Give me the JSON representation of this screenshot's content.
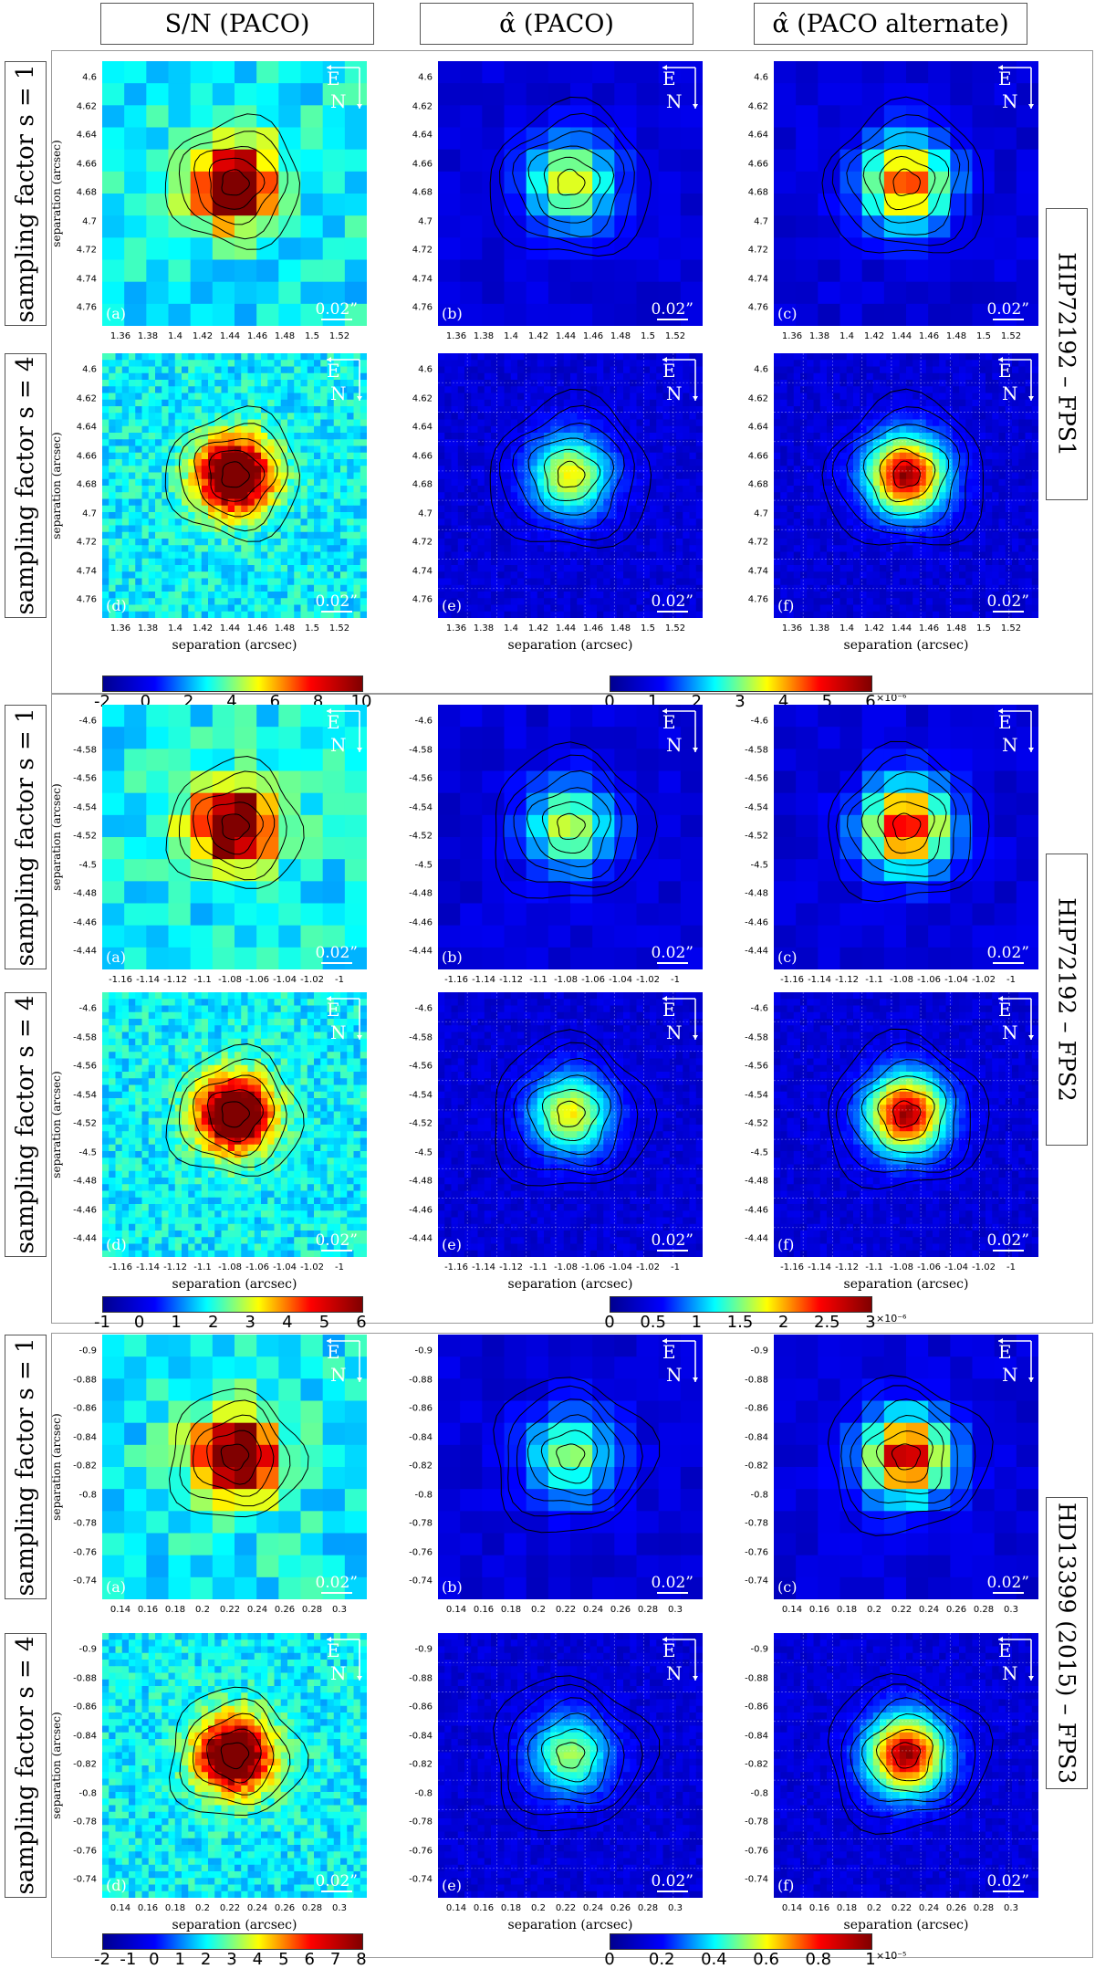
{
  "columns": [
    "S/N (PACO)",
    "α̂ (PACO)",
    "α̂ (PACO alternate)"
  ],
  "row_labels": [
    "sampling factor s = 1",
    "sampling factor s = 4"
  ],
  "axis_label": "separation (arcsec)",
  "scale_label": "0.02”",
  "compass": {
    "east": "E",
    "north": "N"
  },
  "panel_letters": [
    "(a)",
    "(b)",
    "(c)",
    "(d)",
    "(e)",
    "(f)"
  ],
  "targets": [
    {
      "name": "HIP72192 – FPS1",
      "yticks": [
        "4.6",
        "4.62",
        "4.64",
        "4.66",
        "4.68",
        "4.7",
        "4.72",
        "4.74",
        "4.76"
      ],
      "xticks": [
        "1.36",
        "1.38",
        "1.4",
        "1.42",
        "1.44",
        "1.46",
        "1.48",
        "1.5",
        "1.52"
      ],
      "snr_ticks": [
        "-2",
        "0",
        "2",
        "4",
        "6",
        "8",
        "10"
      ],
      "alpha_ticks": [
        "0",
        "1",
        "2",
        "3",
        "4",
        "5",
        "6"
      ],
      "alpha_exp": "×10⁻⁶"
    },
    {
      "name": "HIP72192 – FPS2",
      "yticks": [
        "-4.6",
        "-4.58",
        "-4.56",
        "-4.54",
        "-4.52",
        "-4.5",
        "-4.48",
        "-4.46",
        "-4.44"
      ],
      "xticks": [
        "-1.16",
        "-1.14",
        "-1.12",
        "-1.1",
        "-1.08",
        "-1.06",
        "-1.04",
        "-1.02",
        "-1"
      ],
      "snr_ticks": [
        "-1",
        "0",
        "1",
        "2",
        "3",
        "4",
        "5",
        "6"
      ],
      "alpha_ticks": [
        "0",
        "0.5",
        "1",
        "1.5",
        "2",
        "2.5",
        "3"
      ],
      "alpha_exp": "×10⁻⁶"
    },
    {
      "name": "HD13399 (2015) – FPS3",
      "yticks": [
        "-0.9",
        "-0.88",
        "-0.86",
        "-0.84",
        "-0.82",
        "-0.8",
        "-0.78",
        "-0.76",
        "-0.74"
      ],
      "xticks": [
        "0.14",
        "0.16",
        "0.18",
        "0.2",
        "0.22",
        "0.24",
        "0.26",
        "0.28",
        "0.3"
      ],
      "snr_ticks": [
        "-2",
        "-1",
        "0",
        "1",
        "2",
        "3",
        "4",
        "5",
        "6",
        "7",
        "8"
      ],
      "alpha_ticks": [
        "0",
        "0.2",
        "0.4",
        "0.6",
        "0.8",
        "1"
      ],
      "alpha_exp": "×10⁻⁵"
    }
  ],
  "colors": {
    "low": "#00008f",
    "high": "#800000"
  }
}
